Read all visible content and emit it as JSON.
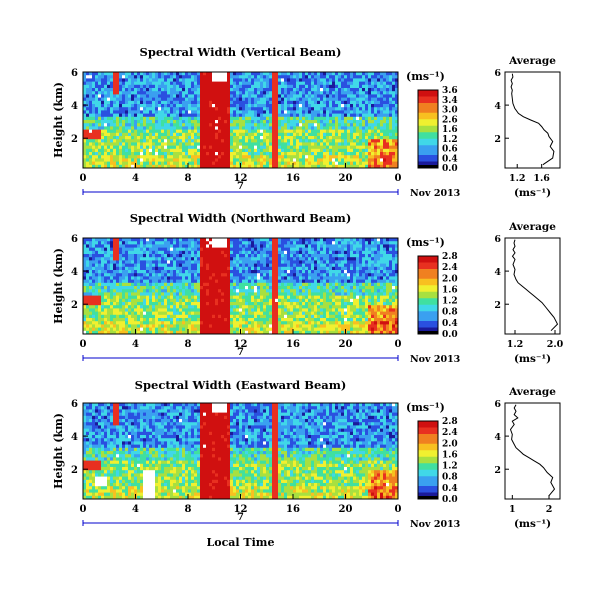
{
  "colors": {
    "colormap": [
      "#000000",
      "#1a1a9a",
      "#2a50e0",
      "#3aa0f0",
      "#40d8e8",
      "#40e0a0",
      "#a8e040",
      "#f0f030",
      "#f8c020",
      "#f08020",
      "#e83020",
      "#d01010"
    ],
    "time_axis": "#0000cc",
    "missing": "#ffffff"
  },
  "chart_data": [
    {
      "type": "heatmap",
      "title": "Spectral Width (Vertical Beam)",
      "ylabel": "Height (km)",
      "xlabel": "",
      "x_ticks": [
        "0",
        "4",
        "8",
        "12",
        "16",
        "20",
        "0"
      ],
      "y_ticks": [
        "2",
        "4",
        "6"
      ],
      "xlim": [
        0,
        24
      ],
      "ylim": [
        0.2,
        6
      ],
      "date_label": "Nov 2013",
      "day_label": "7",
      "colorbar": {
        "unit": "(ms⁻¹)",
        "ticks": [
          "3.6",
          "3.4",
          "3.0",
          "2.6",
          "1.6",
          "1.2",
          "0.6",
          "0.4",
          "0.0"
        ],
        "range": [
          0,
          3.6
        ]
      },
      "profile": {
        "title": "Average",
        "xlabel": "(ms⁻¹)",
        "x_ticks": [
          "1.2",
          "1.6"
        ],
        "xlim": [
          1.0,
          1.9
        ],
        "y_ticks": [
          "2",
          "4",
          "6"
        ],
        "ylim": [
          0.2,
          6
        ],
        "x": [
          1.62,
          1.78,
          1.8,
          1.74,
          1.78,
          1.72,
          1.7,
          1.64,
          1.6,
          1.55,
          1.42,
          1.3,
          1.22,
          1.16,
          1.13,
          1.12,
          1.11,
          1.12,
          1.1,
          1.12,
          1.1,
          1.13,
          1.12
        ],
        "y": [
          0.4,
          0.8,
          1.2,
          1.5,
          1.8,
          2.1,
          2.3,
          2.5,
          2.7,
          2.9,
          3.1,
          3.3,
          3.5,
          3.8,
          4.1,
          4.4,
          4.7,
          4.9,
          5.1,
          5.3,
          5.5,
          5.7,
          5.9
        ]
      }
    },
    {
      "type": "heatmap",
      "title": "Spectral Width (Northward Beam)",
      "ylabel": "Height (km)",
      "xlabel": "",
      "x_ticks": [
        "0",
        "4",
        "8",
        "12",
        "16",
        "20",
        "0"
      ],
      "y_ticks": [
        "2",
        "4",
        "6"
      ],
      "xlim": [
        0,
        24
      ],
      "ylim": [
        0.2,
        6
      ],
      "date_label": "Nov 2013",
      "day_label": "7",
      "colorbar": {
        "unit": "(ms⁻¹)",
        "ticks": [
          "2.8",
          "2.4",
          "2.0",
          "1.6",
          "1.2",
          "0.8",
          "0.4",
          "0.0"
        ],
        "range": [
          0,
          2.8
        ]
      },
      "profile": {
        "title": "Average",
        "xlabel": "(ms⁻¹)",
        "x_ticks": [
          "1.2",
          "2.0"
        ],
        "xlim": [
          1.0,
          2.1
        ],
        "y_ticks": [
          "2",
          "4",
          "6"
        ],
        "ylim": [
          0.2,
          6
        ],
        "x": [
          1.92,
          2.05,
          1.98,
          1.9,
          1.82,
          1.74,
          1.66,
          1.58,
          1.5,
          1.42,
          1.34,
          1.26,
          1.22,
          1.18,
          1.2,
          1.16,
          1.2,
          1.15,
          1.2,
          1.16,
          1.2,
          1.18,
          1.2
        ],
        "y": [
          0.4,
          0.8,
          1.2,
          1.5,
          1.8,
          2.1,
          2.3,
          2.5,
          2.7,
          2.9,
          3.1,
          3.3,
          3.5,
          3.8,
          4.1,
          4.4,
          4.7,
          4.9,
          5.1,
          5.3,
          5.5,
          5.7,
          5.9
        ]
      }
    },
    {
      "type": "heatmap",
      "title": "Spectral Width (Eastward Beam)",
      "ylabel": "Height (km)",
      "xlabel": "Local Time",
      "x_ticks": [
        "0",
        "4",
        "8",
        "12",
        "16",
        "20",
        "0"
      ],
      "y_ticks": [
        "2",
        "4",
        "6"
      ],
      "xlim": [
        0,
        24
      ],
      "ylim": [
        0.2,
        6
      ],
      "date_label": "Nov 2013",
      "day_label": "7",
      "colorbar": {
        "unit": "(ms⁻¹)",
        "ticks": [
          "2.8",
          "2.4",
          "2.0",
          "1.6",
          "1.2",
          "0.8",
          "0.4",
          "0.0"
        ],
        "range": [
          0,
          2.8
        ]
      },
      "profile": {
        "title": "Average",
        "xlabel": "(ms⁻¹)",
        "x_ticks": [
          "1",
          "2"
        ],
        "xlim": [
          0.8,
          2.3
        ],
        "y_ticks": [
          "2",
          "4",
          "6"
        ],
        "ylim": [
          0.2,
          6
        ],
        "x": [
          2.0,
          2.15,
          2.05,
          2.1,
          1.95,
          1.85,
          1.75,
          1.6,
          1.45,
          1.3,
          1.2,
          1.1,
          1.05,
          0.98,
          1.0,
          0.95,
          1.05,
          1.0,
          1.15,
          1.05,
          1.1,
          1.05,
          1.1
        ],
        "y": [
          0.4,
          0.8,
          1.2,
          1.5,
          1.8,
          2.1,
          2.3,
          2.5,
          2.7,
          2.9,
          3.1,
          3.3,
          3.5,
          3.8,
          4.1,
          4.4,
          4.7,
          4.9,
          5.1,
          5.3,
          5.5,
          5.7,
          5.9
        ]
      }
    }
  ]
}
